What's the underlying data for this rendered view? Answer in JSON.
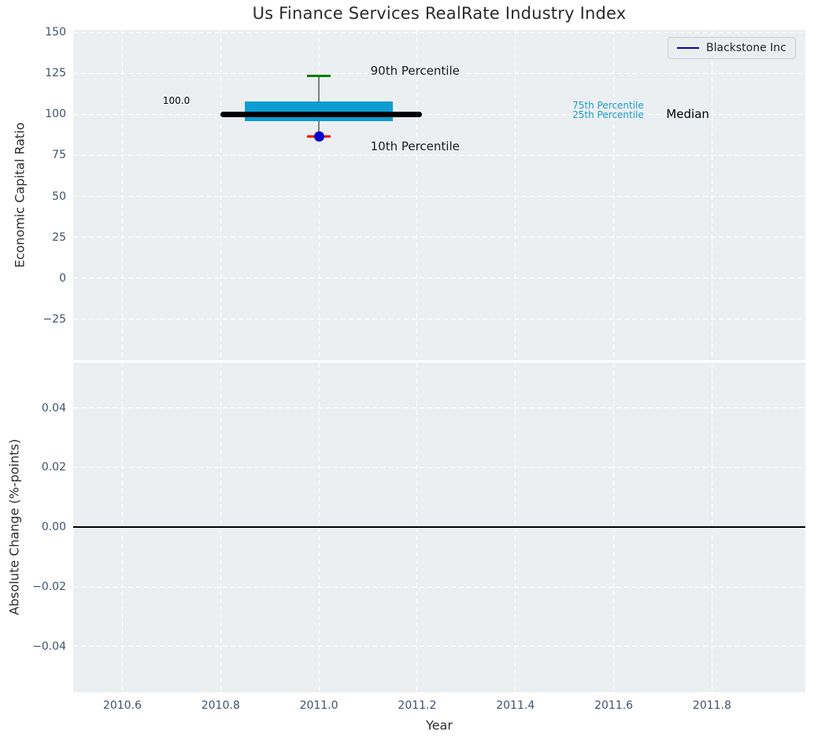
{
  "title": "Us Finance Services RealRate Industry Index",
  "legend": {
    "label": "Blackstone Inc",
    "line_color": "#0000cd"
  },
  "axis_labels": {
    "top_y": "Economic Capital Ratio",
    "bottom_y": "Absolute Change (%-points)",
    "x": "Year"
  },
  "colors": {
    "axes_background": "#eceff1",
    "gridline": "#ffffff",
    "tick_label": "#3f536b",
    "text": "#2d2d2d",
    "box_fill": "#0d9dd3",
    "median_line": "#000000",
    "whisker": "#7f7f7f",
    "p90_cap": "#008000",
    "p10_cap": "#ff0000",
    "company_dot": "#0000cc",
    "zero_line": "#000000",
    "percentile_label_cyan": "#1a9bd1",
    "annotation_dark": "#1a1a1a"
  },
  "chart_data": [
    {
      "type": "boxplot",
      "subplot": "top",
      "title": "Us Finance Services RealRate Industry Index",
      "ylabel": "Economic Capital Ratio",
      "xlim": [
        2010.5,
        2011.99
      ],
      "ylim": [
        -50,
        151.5
      ],
      "grid": true,
      "legend_position": "upper right",
      "yticks": [
        150,
        125,
        100,
        75,
        50,
        25,
        0,
        -25
      ],
      "ytick_labels": [
        "150",
        "125",
        "100",
        "75",
        "50",
        "25",
        "0",
        "−25"
      ],
      "xticks": [
        2010.6,
        2010.8,
        2011.0,
        2011.2,
        2011.4,
        2011.6,
        2011.8
      ],
      "xtick_labels": [
        "2010.6",
        "2010.8",
        "2011.0",
        "2011.2",
        "2011.4",
        "2011.6",
        "2011.8"
      ],
      "box": {
        "x": 2011.0,
        "median": 100.0,
        "q1": 96.0,
        "q3": 108.0,
        "p10": 86.5,
        "p90": 123.5,
        "box_x_range": [
          2010.85,
          2011.15
        ],
        "median_x_range": [
          2010.8,
          2011.21
        ]
      },
      "company_point": {
        "name": "Blackstone Inc",
        "x": 2011.0,
        "y": 86.5
      },
      "annotations": [
        {
          "text": "100.0",
          "x": 2010.71,
          "y": 108.5,
          "size": 12,
          "color": "#000000",
          "ha": "center"
        },
        {
          "text": "90th Percentile",
          "x": 2011.105,
          "y": 126.5,
          "size": 15,
          "color": "#1a1a1a",
          "ha": "left"
        },
        {
          "text": "10th Percentile",
          "x": 2011.105,
          "y": 80.5,
          "size": 15,
          "color": "#1a1a1a",
          "ha": "left"
        },
        {
          "text": "75th Percentile",
          "x": 2011.516,
          "y": 105.3,
          "size": 12,
          "color": "#1a9bd1",
          "ha": "left"
        },
        {
          "text": "25th Percentile",
          "x": 2011.516,
          "y": 99.5,
          "size": 12,
          "color": "#1a9bd1",
          "ha": "left"
        },
        {
          "text": "Median",
          "x": 2011.707,
          "y": 100.0,
          "size": 15,
          "color": "#000000",
          "ha": "left"
        }
      ]
    },
    {
      "type": "line",
      "subplot": "bottom",
      "ylabel": "Absolute Change (%-points)",
      "xlabel": "Year",
      "xlim": [
        2010.5,
        2011.99
      ],
      "ylim": [
        -0.0553,
        0.0552
      ],
      "grid": true,
      "yticks": [
        0.04,
        0.02,
        0.0,
        -0.02,
        -0.04
      ],
      "ytick_labels": [
        "0.04",
        "0.02",
        "0.00",
        "−0.02",
        "−0.04"
      ],
      "xticks": [
        2010.6,
        2010.8,
        2011.0,
        2011.2,
        2011.4,
        2011.6,
        2011.8
      ],
      "xtick_labels": [
        "2010.6",
        "2010.8",
        "2011.0",
        "2011.2",
        "2011.4",
        "2011.6",
        "2011.8"
      ],
      "zero_line_y": 0.0,
      "series": []
    }
  ]
}
